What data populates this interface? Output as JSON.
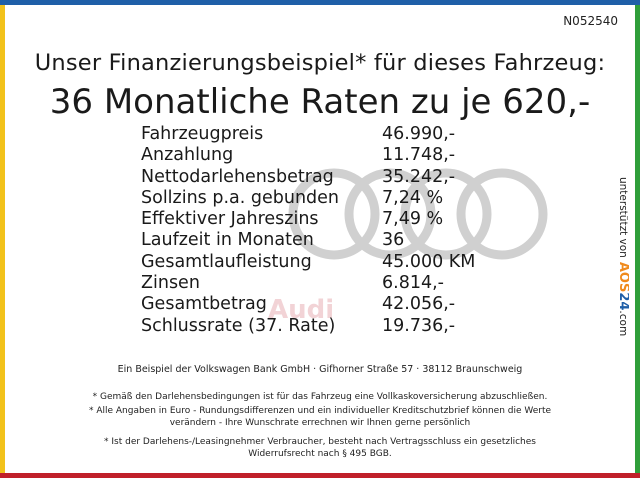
{
  "offer_id": "N052540",
  "subtitle": "Unser Finanzierungsbeispiel* für dieses Fahrzeug:",
  "headline": "36 Monatliche Raten zu je 620,-",
  "brand_watermark": "Audi",
  "finance_rows": [
    {
      "label": "Fahrzeugpreis",
      "value": "46.990,-"
    },
    {
      "label": "Anzahlung",
      "value": "11.748,-"
    },
    {
      "label": "Nettodarlehensbetrag",
      "value": "35.242,-"
    },
    {
      "label": "Sollzins p.a. gebunden",
      "value": "7,24 %"
    },
    {
      "label": "Effektiver Jahreszins",
      "value": "7,49 %"
    },
    {
      "label": "Laufzeit in Monaten",
      "value": "36"
    },
    {
      "label": "Gesamtlaufleistung",
      "value": "45.000 KM"
    },
    {
      "label": "Zinsen",
      "value": "6.814,-"
    },
    {
      "label": "Gesamtbetrag",
      "value": "42.056,-"
    },
    {
      "label": "Schlussrate (37. Rate)",
      "value": "19.736,-"
    }
  ],
  "credit": {
    "prefix": "unterstützt von",
    "brand_a": "AOS",
    "brand_b": "24",
    "suffix": ".com"
  },
  "bank_line": "Ein Beispiel der Volkswagen Bank GmbH · Gifhorner Straße 57 · 38112 Braunschweig",
  "note1": "* Gemäß den Darlehensbedingungen ist für das Fahrzeug eine Vollkaskoversicherung abzuschließen.",
  "note2_line1": "* Alle Angaben in Euro - Rundungsdifferenzen und ein individueller Kreditschutzbrief können die Werte",
  "note2_line2": "verändern - Ihre Wunschrate errechnen wir Ihnen gerne persönlich",
  "note3_line1": "* Ist der Darlehens-/Leasingnehmer Verbraucher, besteht nach Vertragsschluss ein gesetzliches",
  "note3_line2": "Widerrufsrecht nach § 495 BGB.",
  "colors": {
    "frame_top": "#1f5fa8",
    "frame_right": "#2f9e3a",
    "frame_bottom": "#c0202a",
    "frame_left": "#f2c21b",
    "logo_rings": "#d0d0d0",
    "watermark": "#f2d3d6",
    "credit_orange": "#f08a1c",
    "credit_blue": "#1f5fa8"
  }
}
